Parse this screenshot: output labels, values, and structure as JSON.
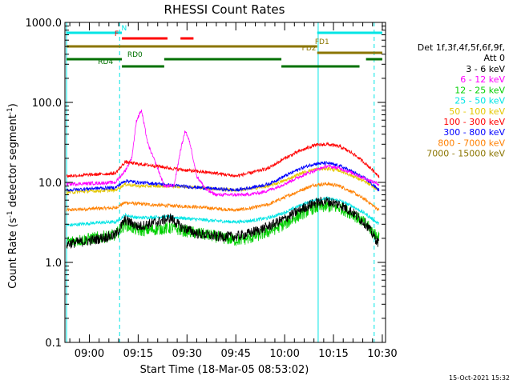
{
  "chart_data": {
    "type": "line",
    "title": "RHESSI Count Rates",
    "xlabel": "Start Time (18-Mar-05 08:53:02)",
    "ylabel_main": "Count Rate (s",
    "ylabel_sup1": "-1",
    "ylabel_mid": " detector segment",
    "ylabel_sup2": "-1",
    "ylabel_end": ")",
    "y_scale": "log",
    "ylim": [
      0.1,
      1000
    ],
    "xlim_minutes": [
      -0.5,
      98
    ],
    "y_ticks": [
      {
        "v": 1000,
        "label": "1000.0"
      },
      {
        "v": 100,
        "label": "100.0"
      },
      {
        "v": 10,
        "label": "10.0"
      },
      {
        "v": 1,
        "label": "1.0"
      },
      {
        "v": 0.1,
        "label": "0.1"
      }
    ],
    "x_ticks": [
      {
        "m": 7,
        "label": "09:00"
      },
      {
        "m": 22,
        "label": "09:15"
      },
      {
        "m": 37,
        "label": "09:30"
      },
      {
        "m": 52,
        "label": "09:45"
      },
      {
        "m": 67,
        "label": "10:00"
      },
      {
        "m": 82,
        "label": "10:15"
      },
      {
        "m": 97,
        "label": "10:30"
      }
    ],
    "legend_header": [
      "Det 1f,3f,4f,5f,6f,9f,",
      "Att 0"
    ],
    "series": [
      {
        "name": "3 - 6 keV",
        "color": "#000000",
        "x": [
          0,
          8,
          15,
          18,
          22,
          28,
          32,
          35,
          40,
          46,
          52,
          56,
          62,
          67,
          72,
          76,
          80,
          84,
          88,
          92,
          96
        ],
        "y": [
          1.7,
          1.9,
          2.2,
          3.4,
          2.8,
          3.2,
          3.6,
          2.8,
          2.3,
          2.1,
          2.1,
          2.3,
          2.8,
          3.5,
          4.6,
          5.5,
          5.8,
          5.3,
          4.2,
          3.0,
          1.7
        ]
      },
      {
        "name": "6 - 12 keV",
        "color": "#ff00ff",
        "x": [
          0,
          10,
          15,
          18,
          20,
          21.5,
          23,
          25,
          28,
          30,
          33,
          35,
          36.5,
          38,
          40,
          43,
          46,
          50,
          55,
          60,
          64,
          68,
          72,
          76,
          80,
          84,
          88,
          92,
          96
        ],
        "y": [
          9.5,
          9.8,
          10,
          14,
          20,
          60,
          80,
          30,
          15,
          9,
          9,
          25,
          45,
          30,
          12,
          8,
          7,
          7,
          7,
          7.5,
          8.5,
          10,
          12,
          14,
          16,
          15,
          13,
          11,
          9.5
        ]
      },
      {
        "name": "12 - 25 keV",
        "color": "#00d000",
        "x": [
          0,
          8,
          15,
          18,
          22,
          28,
          32,
          38,
          46,
          52,
          56,
          62,
          67,
          72,
          76,
          80,
          84,
          88,
          92,
          96
        ],
        "y": [
          1.8,
          2.0,
          2.2,
          3.0,
          2.5,
          2.6,
          2.7,
          2.4,
          2.1,
          1.9,
          2.0,
          2.4,
          3.0,
          4.0,
          4.8,
          5.0,
          4.8,
          4.0,
          3.0,
          2.0
        ]
      },
      {
        "name": "25 - 50 keV",
        "color": "#00e5e5",
        "x": [
          0,
          8,
          15,
          18,
          22,
          28,
          32,
          38,
          46,
          52,
          56,
          62,
          67,
          72,
          76,
          80,
          84,
          88,
          92,
          96
        ],
        "y": [
          2.9,
          3.1,
          3.2,
          3.9,
          3.6,
          3.7,
          3.7,
          3.5,
          3.3,
          3.2,
          3.3,
          3.6,
          4.2,
          5.2,
          6.0,
          6.3,
          5.9,
          5.0,
          4.0,
          3.0
        ]
      },
      {
        "name": "50 - 100 keV",
        "color": "#e5c800",
        "x": [
          0,
          8,
          15,
          18,
          22,
          28,
          32,
          38,
          46,
          52,
          56,
          62,
          67,
          72,
          76,
          80,
          84,
          88,
          92,
          96
        ],
        "y": [
          7.5,
          7.8,
          8.0,
          9.5,
          9.0,
          9.0,
          9.0,
          8.8,
          8.3,
          8.0,
          8.3,
          9.0,
          10.5,
          13,
          14.5,
          15,
          14,
          12,
          10,
          8
        ]
      },
      {
        "name": "100 - 300 keV",
        "color": "#ff0000",
        "x": [
          0,
          8,
          15,
          18,
          22,
          28,
          32,
          38,
          46,
          52,
          56,
          62,
          67,
          72,
          76,
          80,
          84,
          88,
          92,
          96
        ],
        "y": [
          12,
          12.5,
          13,
          18,
          17,
          16,
          15,
          14,
          13,
          12,
          13,
          15,
          20,
          25,
          29,
          30,
          28,
          23,
          17,
          12
        ]
      },
      {
        "name": "300 - 800 keV",
        "color": "#0000ff",
        "x": [
          0,
          8,
          15,
          18,
          22,
          28,
          32,
          38,
          46,
          52,
          56,
          62,
          67,
          72,
          76,
          80,
          84,
          88,
          92,
          96
        ],
        "y": [
          8,
          8.4,
          8.6,
          10.5,
          10,
          9.6,
          9.2,
          8.8,
          8.3,
          8,
          8.5,
          9.5,
          12,
          15,
          17,
          17.5,
          16,
          13.5,
          11,
          8
        ]
      },
      {
        "name": "800 - 7000 keV",
        "color": "#ff8000",
        "x": [
          0,
          8,
          15,
          18,
          22,
          28,
          32,
          38,
          46,
          52,
          56,
          62,
          67,
          72,
          76,
          80,
          84,
          88,
          92,
          96
        ],
        "y": [
          4.5,
          4.7,
          4.8,
          5.6,
          5.4,
          5.2,
          5.1,
          5.0,
          4.7,
          4.5,
          4.7,
          5.3,
          6.5,
          8.0,
          9.3,
          9.6,
          9.0,
          7.5,
          6.0,
          4.5
        ]
      },
      {
        "name": "7000 - 15000 keV",
        "color": "#8b7500",
        "x": [],
        "y": []
      }
    ],
    "flags": [
      {
        "label": "N",
        "color": "#00e5e5",
        "level": 1,
        "segments": [
          [
            0,
            17
          ],
          [
            77,
            97
          ]
        ]
      },
      {
        "label": "F",
        "color": "#ff0000",
        "level": 2,
        "segments": [
          [
            17,
            31
          ],
          [
            35,
            39
          ]
        ]
      },
      {
        "label": "FD1",
        "color": "#8b7500",
        "level": 3,
        "segments": [
          [
            0,
            77
          ]
        ]
      },
      {
        "label": "FD2",
        "color": "#8b7500",
        "level": 4,
        "segments": [
          [
            77,
            97
          ]
        ]
      },
      {
        "label": "RD0",
        "color": "#007000",
        "level": 5,
        "segments": [
          [
            0,
            17
          ],
          [
            30,
            66
          ],
          [
            92,
            97
          ]
        ]
      },
      {
        "label": "RD4",
        "color": "#007000",
        "level": 6,
        "segments": [
          [
            17,
            30
          ],
          [
            66,
            90
          ]
        ]
      }
    ],
    "vlines_minutes": [
      0,
      16.3,
      77.3,
      94.5
    ],
    "timestamp": "15-Oct-2021 15:32"
  }
}
